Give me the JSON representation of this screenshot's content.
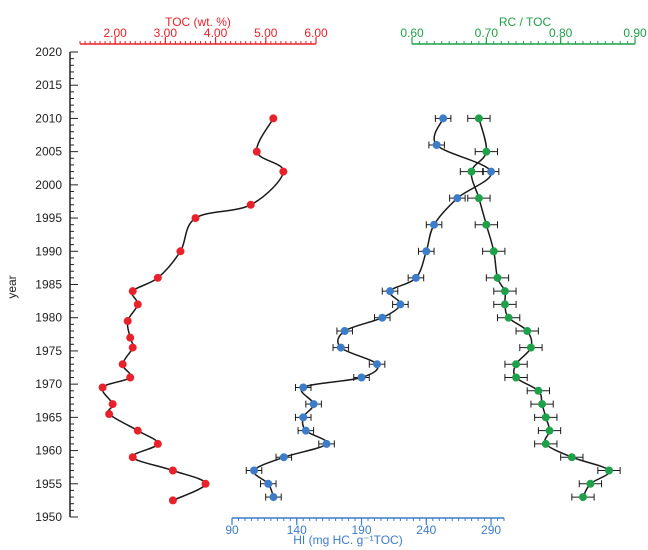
{
  "colors": {
    "toc": "#e8212a",
    "hi": "#3d7cc9",
    "rc": "#1fa04a",
    "curve": "#1a1a1a",
    "axis": "#222222"
  },
  "chart_data": {
    "type": "line",
    "y_axis": {
      "label": "year",
      "ylim": [
        1950,
        2020
      ],
      "ticks": [
        "1950",
        "1955",
        "1960",
        "1965",
        "1970",
        "1975",
        "1980",
        "1985",
        "1990",
        "1995",
        "2000",
        "2005",
        "2010",
        "2015",
        "2020"
      ]
    },
    "toc_axis": {
      "label": "TOC (wt. %)",
      "position": "top",
      "range": [
        1.3,
        6.0
      ],
      "ticks": [
        "2.00",
        "3.00",
        "4.00",
        "5.00",
        "6.00"
      ]
    },
    "rc_axis": {
      "label": "RC / TOC",
      "position": "top",
      "range": [
        0.6,
        0.9
      ],
      "ticks": [
        "0.60",
        "0.70",
        "0.80",
        "0.90"
      ]
    },
    "hi_axis": {
      "label": "HI (mg HC. g⁻¹TOC)",
      "position": "bottom",
      "range": [
        90,
        300
      ],
      "ticks": [
        "90",
        "140",
        "190",
        "240",
        "290"
      ]
    },
    "series": [
      {
        "name": "TOC",
        "axis": "toc",
        "error_bars": false,
        "points": [
          [
            5.15,
            2010
          ],
          [
            4.82,
            2005
          ],
          [
            5.35,
            2002
          ],
          [
            4.7,
            1997
          ],
          [
            3.6,
            1995
          ],
          [
            3.3,
            1990
          ],
          [
            2.85,
            1986
          ],
          [
            2.35,
            1984
          ],
          [
            2.45,
            1982
          ],
          [
            2.25,
            1979.5
          ],
          [
            2.3,
            1977
          ],
          [
            2.35,
            1975.5
          ],
          [
            2.15,
            1973
          ],
          [
            2.3,
            1971
          ],
          [
            1.75,
            1969.5
          ],
          [
            1.95,
            1967
          ],
          [
            1.88,
            1965.5
          ],
          [
            2.45,
            1963
          ],
          [
            2.85,
            1961
          ],
          [
            2.35,
            1959
          ],
          [
            3.15,
            1957
          ],
          [
            3.8,
            1955
          ],
          [
            3.15,
            1952.5
          ]
        ]
      },
      {
        "name": "HI",
        "axis": "hi",
        "error_bars": true,
        "error": 6,
        "points": [
          [
            253,
            2010
          ],
          [
            248,
            2006
          ],
          [
            290,
            2002
          ],
          [
            264,
            1998
          ],
          [
            246,
            1994
          ],
          [
            240,
            1990
          ],
          [
            232,
            1986
          ],
          [
            212,
            1984
          ],
          [
            220,
            1982
          ],
          [
            206,
            1980
          ],
          [
            177,
            1978
          ],
          [
            174,
            1975.5
          ],
          [
            202,
            1973
          ],
          [
            190,
            1971
          ],
          [
            145,
            1969.5
          ],
          [
            153,
            1967
          ],
          [
            145,
            1965
          ],
          [
            147,
            1963
          ],
          [
            163,
            1961
          ],
          [
            130,
            1959
          ],
          [
            107,
            1957
          ],
          [
            118,
            1955
          ],
          [
            122,
            1953
          ]
        ]
      },
      {
        "name": "RC / TOC",
        "axis": "rc",
        "error_bars": true,
        "error": 0.015,
        "points": [
          [
            0.69,
            2010
          ],
          [
            0.7,
            2005
          ],
          [
            0.68,
            2002
          ],
          [
            0.69,
            1998
          ],
          [
            0.7,
            1994
          ],
          [
            0.71,
            1990
          ],
          [
            0.715,
            1986
          ],
          [
            0.725,
            1984
          ],
          [
            0.725,
            1982
          ],
          [
            0.73,
            1980
          ],
          [
            0.755,
            1978
          ],
          [
            0.76,
            1975.5
          ],
          [
            0.74,
            1973
          ],
          [
            0.74,
            1971
          ],
          [
            0.77,
            1969
          ],
          [
            0.775,
            1967
          ],
          [
            0.78,
            1965
          ],
          [
            0.785,
            1963
          ],
          [
            0.78,
            1961
          ],
          [
            0.815,
            1959
          ],
          [
            0.865,
            1957
          ],
          [
            0.84,
            1955
          ],
          [
            0.83,
            1953
          ]
        ]
      }
    ]
  }
}
